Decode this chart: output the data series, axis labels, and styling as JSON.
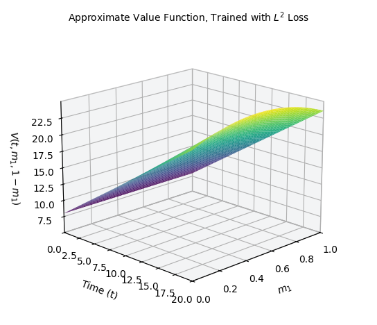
{
  "title": "Approximate Value Function, Trained with $L^2$ Loss",
  "xlabel": "$m_1$",
  "ylabel": "Time (t)",
  "zlabel": "$V(t, m_1, 1-m_1)$",
  "m1_range": [
    0.0,
    1.0
  ],
  "t_range": [
    0.0,
    20.0
  ],
  "m1_ticks": [
    0.0,
    0.2,
    0.4,
    0.6,
    0.8,
    1.0
  ],
  "t_ticks": [
    0.0,
    2.5,
    5.0,
    7.5,
    10.0,
    12.5,
    15.0,
    17.5,
    20.0
  ],
  "z_ticks": [
    7.5,
    10.0,
    12.5,
    15.0,
    17.5,
    20.0,
    22.5
  ],
  "zlim": [
    5.0,
    25.0
  ],
  "colormap": "viridis",
  "elev": 18,
  "azim": -135,
  "figsize": [
    5.44,
    4.68
  ],
  "dpi": 100,
  "a": 8.0,
  "b": 0.78,
  "c": 0.5,
  "n_points": 80,
  "pane_color": "#e8eaed",
  "grid_color": "white",
  "title_fontsize": 10,
  "label_fontsize": 10
}
